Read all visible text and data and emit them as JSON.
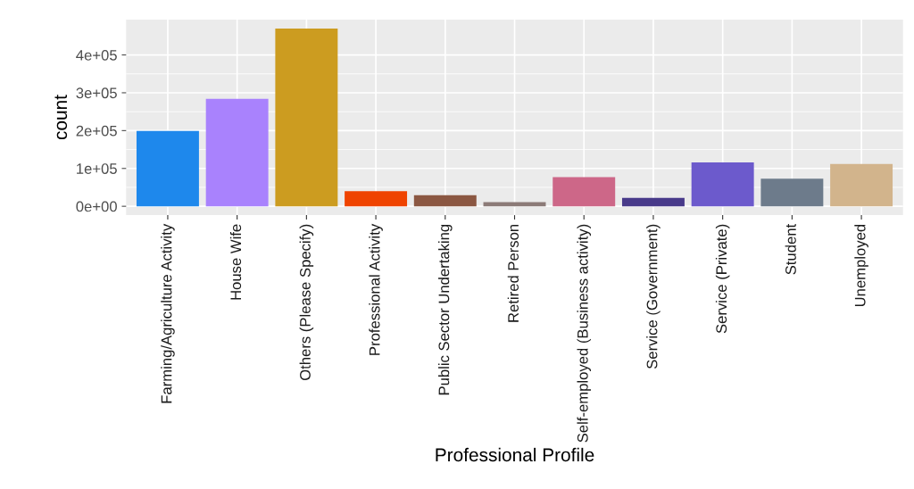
{
  "chart_data": {
    "type": "bar",
    "xlabel": "Professional Profile",
    "ylabel": "count",
    "categories": [
      "Farming/Agriculture Activity",
      "House Wife",
      "Others (Please Specify)",
      "Professional Activity",
      "Public Sector Undertaking",
      "Retired Person",
      "Self-employed (Business activity)",
      "Service (Government)",
      "Service (Private)",
      "Student",
      "Unemployed"
    ],
    "values": [
      199000,
      284000,
      470000,
      40000,
      29000,
      11000,
      77000,
      22000,
      116000,
      73000,
      112000
    ],
    "colors": [
      "#1e88ec",
      "#a982fd",
      "#cc9c20",
      "#ef4300",
      "#8b5742",
      "#8c7b78",
      "#cd6788",
      "#483a8a",
      "#6c5acc",
      "#6d7b8b",
      "#d2b48c"
    ],
    "ylim": [
      -23500,
      493500
    ],
    "yticks": [
      {
        "value": 0,
        "label": "0e+00"
      },
      {
        "value": 100000,
        "label": "1e+05"
      },
      {
        "value": 200000,
        "label": "2e+05"
      },
      {
        "value": 300000,
        "label": "3e+05"
      },
      {
        "value": 400000,
        "label": "4e+05"
      }
    ],
    "grid": true
  }
}
